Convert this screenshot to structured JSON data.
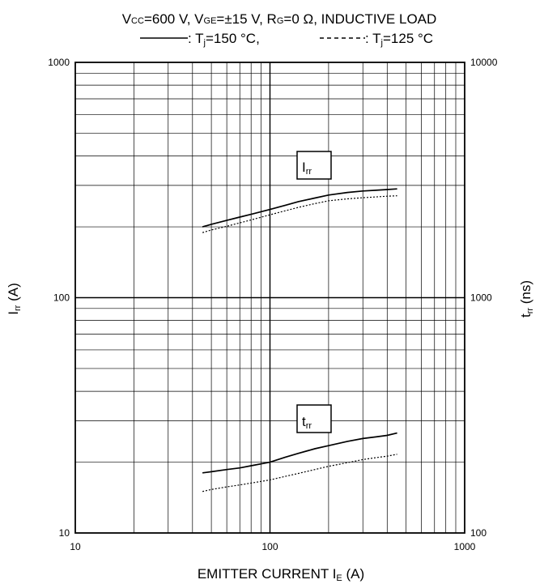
{
  "chart_data": {
    "type": "line",
    "title_line1": {
      "p1": "V",
      "p1sub": "CC",
      "p1rest": "=600  V,  V",
      "p2sub": "GE",
      "p2rest": "=±15  V,  R",
      "p3sub": "G",
      "p3rest": "=0  Ω,  INDUCTIVE  LOAD"
    },
    "title_line2": {
      "solid_lead": ": T",
      "solid_sub": "j",
      "solid_rest": "=150 °C, ",
      "dashed_lead": ": T",
      "dashed_sub": "j",
      "dashed_rest": "=125 °C"
    },
    "xlabel": "EMITTER CURRENT    I",
    "xlabel_sub": "E",
    "xlabel_unit": " (A)",
    "ylabel_left": "I",
    "ylabel_left_sub": "rr",
    "ylabel_left_unit": " (A)",
    "ylabel_right": "t",
    "ylabel_right_sub": "rr",
    "ylabel_right_unit": " (ns)",
    "x_scale": "log",
    "xlim": [
      10,
      1000
    ],
    "x_ticks": [
      "10",
      "100",
      "1000"
    ],
    "y_left_scale": "log",
    "ylim_left": [
      10,
      1000
    ],
    "y_left_ticks": [
      "1000",
      "100",
      "10"
    ],
    "y_right_scale": "log",
    "ylim_right": [
      100,
      10000
    ],
    "y_right_ticks": [
      "10000",
      "1000",
      "100"
    ],
    "grid": true,
    "callouts": [
      {
        "main": "I",
        "sub": "rr"
      },
      {
        "main": "t",
        "sub": "rr"
      }
    ],
    "series": [
      {
        "axis": "left",
        "style": "solid",
        "x": [
          45,
          50,
          60,
          70,
          80,
          100,
          120,
          140,
          170,
          200,
          250,
          300,
          350,
          400,
          450
        ],
        "y": [
          200,
          205,
          213,
          220,
          226,
          237,
          247,
          256,
          265,
          273,
          280,
          284,
          286,
          288,
          290
        ]
      },
      {
        "axis": "left",
        "style": "dotted",
        "x": [
          45,
          50,
          60,
          70,
          80,
          100,
          120,
          140,
          170,
          200,
          250,
          300,
          350,
          400,
          450
        ],
        "y": [
          189,
          194,
          201,
          208,
          214,
          225,
          234,
          242,
          251,
          258,
          263,
          266,
          268,
          270,
          271
        ]
      },
      {
        "axis": "right",
        "style": "solid",
        "x": [
          45,
          50,
          60,
          70,
          80,
          100,
          120,
          140,
          170,
          200,
          250,
          300,
          350,
          400,
          450
        ],
        "y": [
          180,
          182,
          186,
          189,
          193,
          200,
          210,
          218,
          228,
          235,
          245,
          252,
          256,
          260,
          266
        ]
      },
      {
        "axis": "right",
        "style": "dotted",
        "x": [
          45,
          50,
          60,
          70,
          80,
          100,
          120,
          140,
          170,
          200,
          250,
          300,
          350,
          400,
          450
        ],
        "y": [
          150,
          153,
          157,
          160,
          163,
          168,
          174,
          179,
          186,
          192,
          199,
          205,
          209,
          212,
          216
        ]
      }
    ]
  }
}
